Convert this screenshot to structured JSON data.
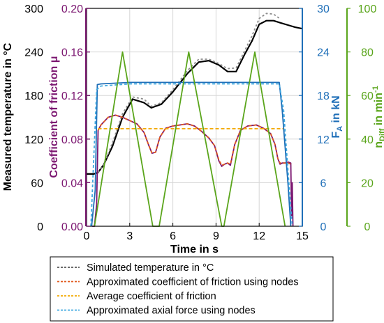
{
  "chart_data": {
    "type": "line",
    "xlabel": "Time in s",
    "x_ticks": [
      "0",
      "3",
      "6",
      "9",
      "12",
      "15"
    ],
    "xlim": [
      0,
      15
    ],
    "axes": [
      {
        "key": "temp",
        "label": "Measured temperature in °C",
        "unit": "°C",
        "ylim": [
          0,
          300
        ],
        "ticks": [
          "0",
          "60",
          "120",
          "180",
          "240",
          "300"
        ],
        "color": "#000000"
      },
      {
        "key": "mu",
        "label": "Coefficient of friction μ",
        "ylim": [
          0,
          0.2
        ],
        "ticks": [
          "0.00",
          "0.04",
          "0.08",
          "0.12",
          "0.16",
          "0.20"
        ],
        "color": "#7b1670"
      },
      {
        "key": "fa",
        "label_main": "F",
        "label_sub": "A",
        "label_rest": " in kN",
        "ylim": [
          0,
          30
        ],
        "ticks": [
          "0",
          "6",
          "12",
          "18",
          "24",
          "30"
        ],
        "color": "#1f6fb8"
      },
      {
        "key": "n",
        "label_main": "n",
        "label_sub": "Diff",
        "label_rest": " in min",
        "label_sup": "-1",
        "ylim": [
          0,
          100
        ],
        "ticks": [
          "0",
          "20",
          "40",
          "60",
          "80",
          "100"
        ],
        "color": "#5aa51b"
      }
    ],
    "series": [
      {
        "name": "measured_temperature",
        "axis": "temp",
        "color": "#000000",
        "dash": "",
        "x": [
          0,
          0.5,
          0.8,
          1.2,
          1.8,
          2.5,
          3.2,
          4.0,
          4.5,
          5.2,
          6.0,
          7.0,
          7.8,
          8.5,
          9.2,
          9.8,
          10.4,
          11.0,
          11.5,
          12.0,
          12.5,
          13.0,
          13.5,
          14.0,
          14.5,
          15.0
        ],
        "y": [
          72,
          72,
          74,
          85,
          110,
          150,
          175,
          170,
          163,
          168,
          185,
          210,
          226,
          228,
          222,
          213,
          213,
          237,
          255,
          278,
          283,
          283,
          280,
          277,
          274,
          272
        ]
      },
      {
        "name": "Simulated temperature in °C",
        "axis": "temp",
        "color": "#8c8c8c",
        "dash": "3,3",
        "x": [
          0.8,
          1.2,
          1.8,
          2.5,
          3.2,
          4.0,
          4.5,
          5.2,
          6.0,
          7.0,
          7.8,
          8.5,
          9.2,
          9.8,
          10.4,
          11.0,
          11.5,
          12.0,
          12.5,
          13.0,
          13.5
        ],
        "y": [
          74,
          85,
          115,
          155,
          178,
          175,
          165,
          170,
          188,
          214,
          230,
          230,
          224,
          217,
          218,
          242,
          262,
          286,
          293,
          292,
          285
        ]
      },
      {
        "name": "measured_friction",
        "axis": "mu",
        "color": "#7b1670",
        "dash": "",
        "x": [
          0.4,
          0.55,
          0.7,
          0.8,
          1.0,
          1.5,
          2.0,
          2.5,
          3.0,
          3.5,
          4.0,
          4.3,
          4.55,
          4.8,
          5.1,
          5.5,
          6.0,
          6.5,
          7.0,
          7.5,
          8.0,
          8.5,
          8.9,
          9.2,
          9.4,
          9.6,
          9.8,
          10.0,
          10.3,
          10.7,
          11.2,
          11.8,
          12.3,
          12.8,
          13.1,
          13.3,
          13.45,
          13.6,
          13.8,
          14.0,
          14.2,
          14.25,
          14.3,
          14.35
        ],
        "y": [
          0.0,
          0.0,
          0.02,
          0.088,
          0.093,
          0.1,
          0.102,
          0.1,
          0.097,
          0.094,
          0.086,
          0.075,
          0.067,
          0.068,
          0.082,
          0.09,
          0.092,
          0.093,
          0.094,
          0.092,
          0.087,
          0.081,
          0.074,
          0.06,
          0.055,
          0.057,
          0.058,
          0.056,
          0.075,
          0.088,
          0.092,
          0.093,
          0.09,
          0.085,
          0.075,
          0.062,
          0.057,
          0.058,
          0.058,
          0.059,
          0.058,
          0.01,
          0.04,
          0.0
        ]
      },
      {
        "name": "Approximated coefficient of friction using nodes",
        "axis": "mu",
        "color": "#e05a1e",
        "dash": "4,3",
        "x": [
          0.8,
          1.0,
          1.5,
          2.0,
          2.5,
          3.0,
          3.5,
          4.0,
          4.3,
          4.55,
          4.8,
          5.1,
          5.5,
          6.0,
          6.5,
          7.0,
          7.5,
          8.0,
          8.5,
          8.9,
          9.2,
          9.4,
          9.6,
          9.8,
          10.0,
          10.3,
          10.7,
          11.2,
          11.8,
          12.3,
          12.8,
          13.1,
          13.3,
          13.45,
          13.6,
          13.8,
          14.0,
          14.2
        ],
        "y": [
          0.088,
          0.093,
          0.1,
          0.102,
          0.1,
          0.097,
          0.094,
          0.086,
          0.075,
          0.067,
          0.068,
          0.082,
          0.09,
          0.092,
          0.093,
          0.094,
          0.092,
          0.087,
          0.081,
          0.074,
          0.061,
          0.056,
          0.057,
          0.058,
          0.057,
          0.075,
          0.088,
          0.092,
          0.093,
          0.09,
          0.085,
          0.075,
          0.062,
          0.058,
          0.058,
          0.058,
          0.058,
          0.057
        ]
      },
      {
        "name": "Average coefficient of friction",
        "axis": "mu",
        "color": "#f2a900",
        "dash": "5,3",
        "x": [
          0.8,
          13.7
        ],
        "y": [
          0.0895,
          0.0895
        ]
      },
      {
        "name": "measured_axial_force",
        "axis": "fa",
        "color": "#1f6fb8",
        "dash": "",
        "x": [
          0.35,
          0.6,
          0.75,
          1.0,
          2.0,
          3.0,
          6.0,
          9.0,
          12.0,
          13.4,
          13.6,
          14.0,
          14.2
        ],
        "y": [
          0,
          5,
          19.5,
          19.6,
          19.7,
          19.8,
          19.8,
          19.8,
          19.8,
          19.8,
          16,
          6,
          0
        ]
      },
      {
        "name": "Approximated axial force using nodes",
        "axis": "fa",
        "color": "#3fa9e0",
        "dash": "4,3",
        "x": [
          0.3,
          0.7,
          1.0,
          3.0,
          13.4,
          13.7,
          14.1,
          14.3
        ],
        "y": [
          0,
          18.8,
          19.3,
          19.6,
          19.6,
          16,
          5,
          0
        ]
      },
      {
        "name": "rotational_speed",
        "axis": "n",
        "color": "#5aa51b",
        "dash": "",
        "x": [
          0.55,
          2.5,
          4.6,
          5.05,
          7.1,
          9.4,
          9.55,
          11.7,
          13.8
        ],
        "y": [
          0,
          80,
          0,
          0,
          80,
          0,
          0,
          80,
          0
        ]
      }
    ],
    "legend": {
      "placement": "bottom",
      "entries": [
        {
          "label": "Simulated temperature in °C",
          "color": "#555555"
        },
        {
          "label": "Approximated coefficient of friction using nodes",
          "color": "#e05a1e"
        },
        {
          "label": "Average coefficient of friction",
          "color": "#f2a900"
        },
        {
          "label": "Approximated axial force using nodes",
          "color": "#3fa9e0"
        }
      ]
    },
    "grid": true
  }
}
